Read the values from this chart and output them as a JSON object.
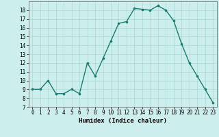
{
  "x": [
    0,
    1,
    2,
    3,
    4,
    5,
    6,
    7,
    8,
    9,
    10,
    11,
    12,
    13,
    14,
    15,
    16,
    17,
    18,
    19,
    20,
    21,
    22,
    23
  ],
  "y": [
    9,
    9,
    10,
    8.5,
    8.5,
    9,
    8.5,
    12,
    10.5,
    12.5,
    14.5,
    16.5,
    16.7,
    18.2,
    18.1,
    18.0,
    18.5,
    18.0,
    16.8,
    14.2,
    12.0,
    10.5,
    9.0,
    7.5
  ],
  "line_color": "#1a7a6e",
  "marker_color": "#1a7a6e",
  "bg_color": "#cceeed",
  "grid_color": "#aad8d5",
  "xlabel": "Humidex (Indice chaleur)",
  "ylim": [
    7,
    19
  ],
  "xlim": [
    -0.5,
    23.5
  ],
  "yticks": [
    7,
    8,
    9,
    10,
    11,
    12,
    13,
    14,
    15,
    16,
    17,
    18
  ],
  "xticks": [
    0,
    1,
    2,
    3,
    4,
    5,
    6,
    7,
    8,
    9,
    10,
    11,
    12,
    13,
    14,
    15,
    16,
    17,
    18,
    19,
    20,
    21,
    22,
    23
  ],
  "xlabel_fontsize": 6.5,
  "tick_fontsize": 5.5,
  "line_width": 1.0,
  "marker_size": 2.2
}
